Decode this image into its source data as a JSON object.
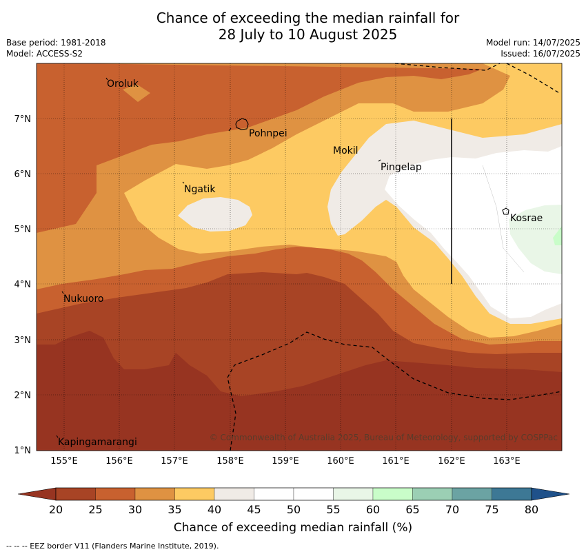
{
  "title": {
    "line1": "Chance of exceeding the median rainfall for",
    "line2": "28 July to 10 August 2025"
  },
  "meta": {
    "base_period": "Base period: 1981-2018",
    "model": "Model: ACCESS-S2",
    "model_run": "Model run: 14/07/2025",
    "issued": "Issued: 16/07/2025"
  },
  "map": {
    "lon_ticks": [
      "155°E",
      "156°E",
      "157°E",
      "158°E",
      "159°E",
      "160°E",
      "161°E",
      "162°E",
      "163°E"
    ],
    "lat_ticks": [
      "7°N",
      "6°N",
      "5°N",
      "4°N",
      "3°N",
      "2°N",
      "1°N"
    ],
    "places": [
      "Oroluk",
      "Pohnpei",
      "Mokil",
      "Pingelap",
      "Ngatik",
      "Kosrae",
      "Nukuoro",
      "Kapingamarangi"
    ],
    "credit": "© Commonwealth of Australia 2025, Bureau of Meteorology, supported by COSPPac"
  },
  "colorbar": {
    "ticks": [
      "20",
      "25",
      "30",
      "35",
      "40",
      "45",
      "50",
      "55",
      "60",
      "65",
      "70",
      "75",
      "80"
    ],
    "colors": [
      "#a84425",
      "#c8612f",
      "#df9242",
      "#fdca62",
      "#f0ebe6",
      "#ffffff",
      "#ffffff",
      "#e9f6e7",
      "#c9fdc9",
      "#9bcfb4",
      "#6ba3a3",
      "#3d7895"
    ],
    "under_color": "#973421",
    "over_color": "#1f518a",
    "label": "Chance of exceeding median rainfall (%)"
  },
  "footnote": "--  --  -- EEZ border V11 (Flanders Marine Institute, 2019)."
}
